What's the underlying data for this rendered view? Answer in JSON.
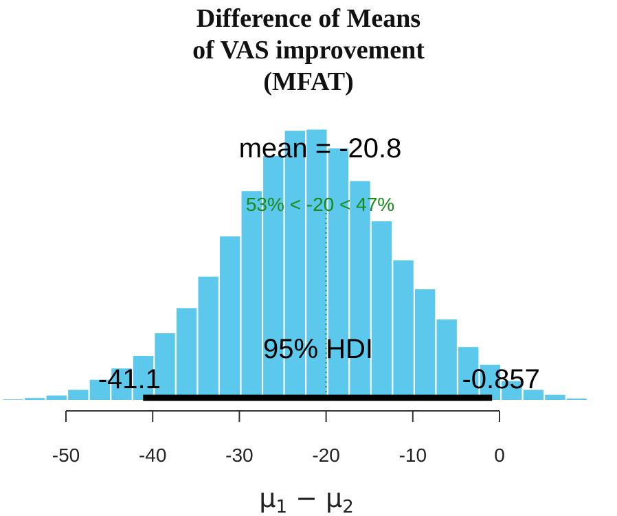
{
  "title_lines": [
    "Difference of Means",
    "of VAS improvement",
    "(MFAT)"
  ],
  "chart_data": {
    "type": "bar",
    "title": "Difference of Means of VAS improvement (MFAT)",
    "xlabel": "μ1 − μ2",
    "ylabel": "",
    "xlim": [
      -55,
      7
    ],
    "x_ticks": [
      -50,
      -40,
      -30,
      -20,
      -10,
      0
    ],
    "bar_color": "#5bc8ec",
    "bin_width": 2.5,
    "bins": [
      {
        "x": -56,
        "h": 0.4
      },
      {
        "x": -53.5,
        "h": 1.5
      },
      {
        "x": -51,
        "h": 3.5
      },
      {
        "x": -48.5,
        "h": 8
      },
      {
        "x": -46,
        "h": 16
      },
      {
        "x": -43.5,
        "h": 25
      },
      {
        "x": -41,
        "h": 35
      },
      {
        "x": -38.5,
        "h": 53
      },
      {
        "x": -36,
        "h": 73
      },
      {
        "x": -33.5,
        "h": 98
      },
      {
        "x": -31,
        "h": 130
      },
      {
        "x": -28.5,
        "h": 166
      },
      {
        "x": -26,
        "h": 194
      },
      {
        "x": -23.5,
        "h": 214
      },
      {
        "x": -21,
        "h": 215
      },
      {
        "x": -18.5,
        "h": 200
      },
      {
        "x": -16,
        "h": 174
      },
      {
        "x": -13.5,
        "h": 142
      },
      {
        "x": -11,
        "h": 111
      },
      {
        "x": -8.5,
        "h": 88
      },
      {
        "x": -6,
        "h": 64
      },
      {
        "x": -3.5,
        "h": 42
      },
      {
        "x": -1,
        "h": 28
      },
      {
        "x": 1.5,
        "h": 15
      },
      {
        "x": 4,
        "h": 8
      },
      {
        "x": 6.5,
        "h": 4
      },
      {
        "x": 9,
        "h": 1
      }
    ],
    "mean_label": "mean = -20.8",
    "comp_value": -20,
    "comp_label": "53% < -20 < 47%",
    "comp_color": "#1a8a1a",
    "hdi": {
      "low": -41.1,
      "high": -0.857,
      "label": "95% HDI",
      "low_label": "-41.1",
      "high_label": "-0.857"
    }
  }
}
